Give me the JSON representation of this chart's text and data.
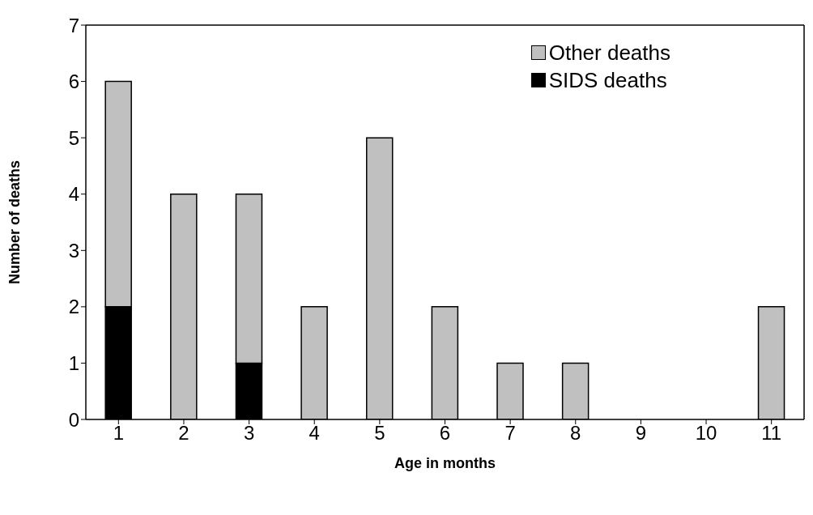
{
  "chart_data": {
    "type": "bar",
    "xlabel": "Age in months",
    "ylabel": "Number of deaths",
    "categories": [
      "1",
      "2",
      "3",
      "4",
      "5",
      "6",
      "7",
      "8",
      "9",
      "10",
      "11"
    ],
    "stacked": true,
    "series": [
      {
        "name": "SIDS deaths",
        "color": "#000000",
        "values": [
          2,
          0,
          1,
          0,
          0,
          0,
          0,
          0,
          0,
          0,
          0
        ]
      },
      {
        "name": "Other deaths",
        "color": "#c0c0c0",
        "values": [
          4,
          4,
          3,
          2,
          5,
          2,
          1,
          1,
          0,
          0,
          2
        ]
      }
    ],
    "ylim": [
      0,
      7
    ],
    "yticks": [
      0,
      1,
      2,
      3,
      4,
      5,
      6,
      7
    ],
    "grid": false,
    "legend": "top right"
  }
}
